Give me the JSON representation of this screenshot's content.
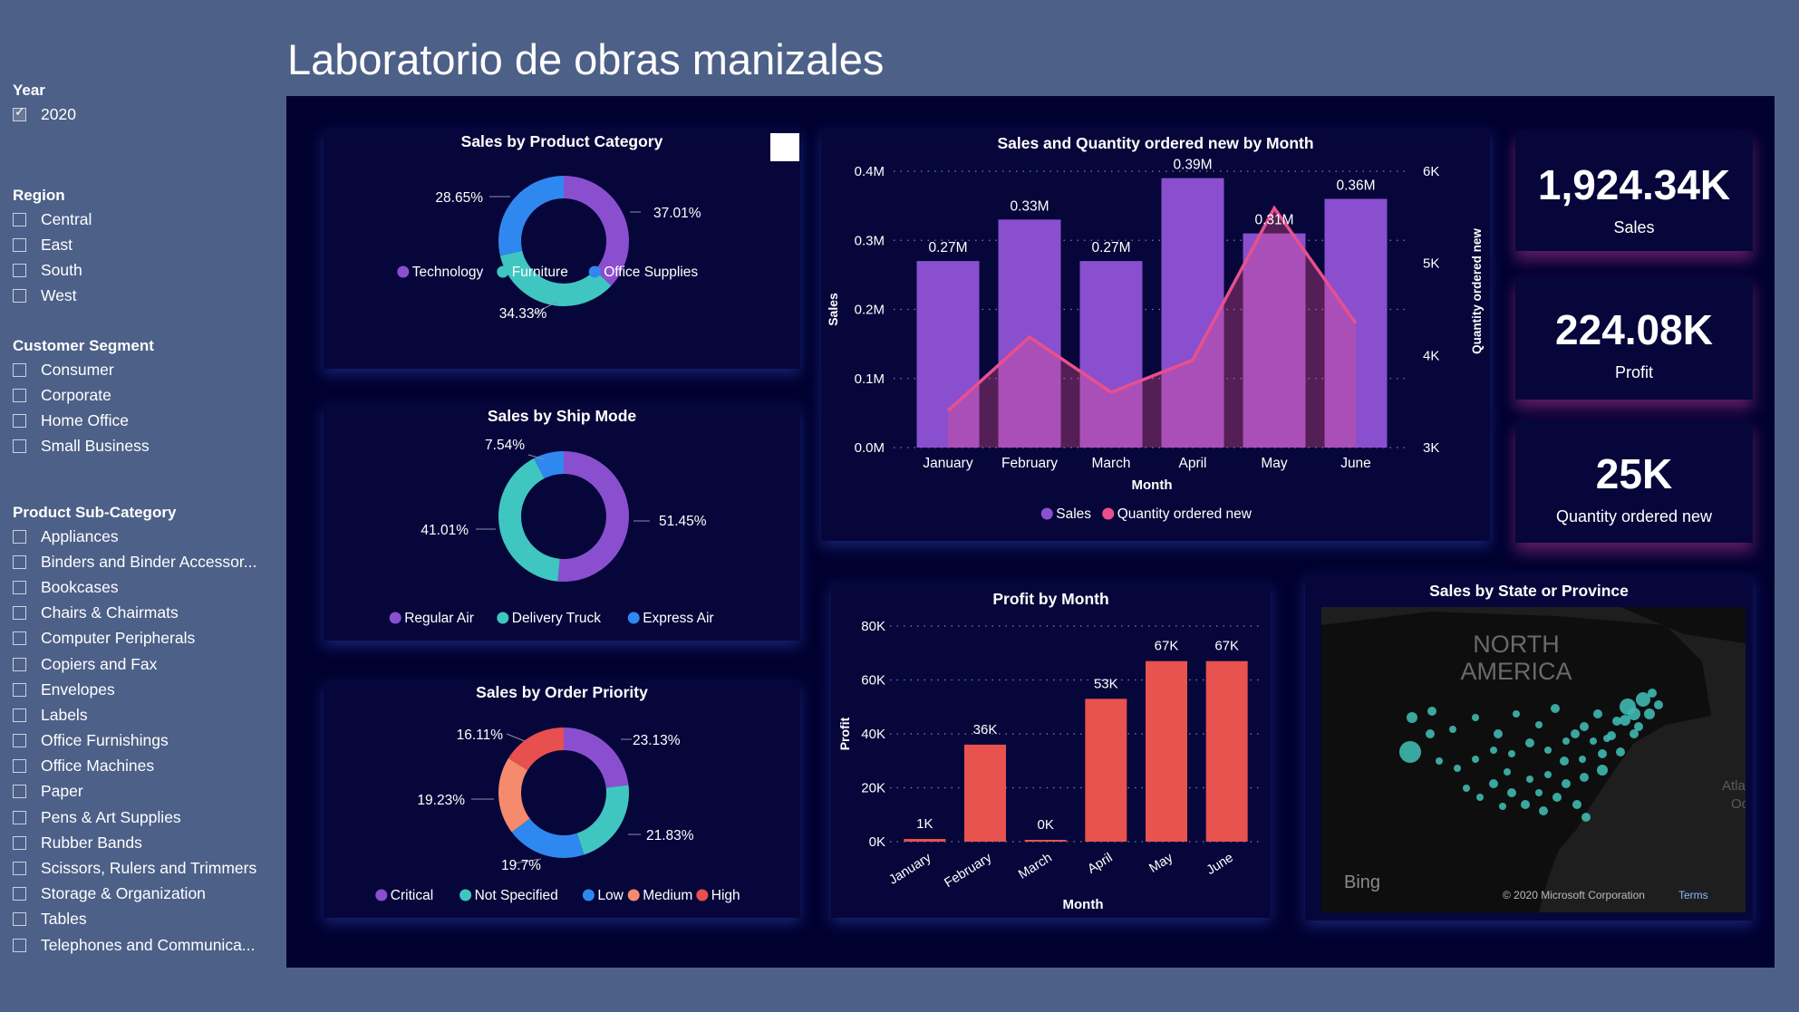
{
  "title": "Laboratorio de obras manizales",
  "slicers": [
    {
      "title": "Year",
      "items": [
        "2020"
      ],
      "checked": [
        true
      ]
    },
    {
      "title": "Region",
      "items": [
        "Central",
        "East",
        "South",
        "West"
      ]
    },
    {
      "title": "Customer Segment",
      "items": [
        "Consumer",
        "Corporate",
        "Home Office",
        "Small Business"
      ]
    },
    {
      "title": "Product Sub-Category",
      "items": [
        "Appliances",
        "Binders and Binder Accessor...",
        "Bookcases",
        "Chairs & Chairmats",
        "Computer Peripherals",
        "Copiers and Fax",
        "Envelopes",
        "Labels",
        "Office Furnishings",
        "Office Machines",
        "Paper",
        "Pens & Art Supplies",
        "Rubber Bands",
        "Scissors, Rulers and Trimmers",
        "Storage & Organization",
        "Tables",
        "Telephones and Communica..."
      ]
    }
  ],
  "kpis": [
    {
      "value": "1,924.34K",
      "label": "Sales"
    },
    {
      "value": "224.08K",
      "label": "Profit"
    },
    {
      "value": "25K",
      "label": "Quantity ordered new"
    }
  ],
  "map": {
    "title": "Sales by State or Province",
    "region_label_1": "NORTH",
    "region_label_2": "AMERICA",
    "edge_label_1": "Atla",
    "edge_label_2": "Oc",
    "brand": "Bing",
    "copyright": "© 2020 Microsoft Corporation",
    "terms": "Terms"
  },
  "chart_data": [
    {
      "type": "pie",
      "title": "Sales by Product Category",
      "categories": [
        "Technology",
        "Furniture",
        "Office Supplies"
      ],
      "values": [
        37.01,
        34.33,
        28.65
      ],
      "labels": [
        "37.01%",
        "34.33%",
        "28.65%"
      ],
      "colors": [
        "#8a4fcf",
        "#3fc6c0",
        "#2f88f0"
      ]
    },
    {
      "type": "pie",
      "title": "Sales by Ship Mode",
      "categories": [
        "Regular Air",
        "Delivery Truck",
        "Express Air"
      ],
      "values": [
        51.45,
        41.01,
        7.54
      ],
      "labels": [
        "51.45%",
        "41.01%",
        "7.54%"
      ],
      "colors": [
        "#8a4fcf",
        "#3fc6c0",
        "#2f88f0"
      ]
    },
    {
      "type": "pie",
      "title": "Sales by Order Priority",
      "categories": [
        "Critical",
        "Not Specified",
        "Low",
        "Medium",
        "High"
      ],
      "values": [
        23.13,
        21.83,
        19.7,
        19.23,
        16.11
      ],
      "labels": [
        "23.13%",
        "21.83%",
        "19.7%",
        "19.23%",
        "16.11%"
      ],
      "colors": [
        "#8a4fcf",
        "#3fc6c0",
        "#2f88f0",
        "#f58a6d",
        "#e84f4f"
      ]
    },
    {
      "type": "bar",
      "title": "Sales and Quantity ordered new by Month",
      "categories": [
        "January",
        "February",
        "March",
        "April",
        "May",
        "June"
      ],
      "series": [
        {
          "name": "Sales",
          "values": [
            0.27,
            0.33,
            0.27,
            0.39,
            0.31,
            0.36
          ],
          "labels": [
            "0.27M",
            "0.33M",
            "0.27M",
            "0.39M",
            "0.31M",
            "0.36M"
          ],
          "color": "#8a4fcf"
        },
        {
          "name": "Quantity ordered new",
          "values": [
            3.4,
            4.2,
            3.6,
            3.95,
            5.6,
            4.35
          ],
          "color": "#e8508c"
        }
      ],
      "xlabel": "Month",
      "ylabel": "Sales",
      "y2label": "Quantity ordered new",
      "ylim": [
        0,
        0.4
      ],
      "yticks": [
        "0.0M",
        "0.1M",
        "0.2M",
        "0.3M",
        "0.4M"
      ],
      "y2lim": [
        3,
        6
      ],
      "y2ticks": [
        "3K",
        "4K",
        "5K",
        "6K"
      ]
    },
    {
      "type": "bar",
      "title": "Profit by Month",
      "categories": [
        "January",
        "February",
        "March",
        "April",
        "May",
        "June"
      ],
      "values": [
        1,
        36,
        0.3,
        53,
        67,
        67
      ],
      "labels": [
        "1K",
        "36K",
        "0K",
        "53K",
        "67K",
        "67K"
      ],
      "color": "#e8524f",
      "xlabel": "Month",
      "ylabel": "Profit",
      "ylim": [
        0,
        80
      ],
      "yticks": [
        "0K",
        "20K",
        "40K",
        "60K",
        "80K"
      ]
    }
  ]
}
